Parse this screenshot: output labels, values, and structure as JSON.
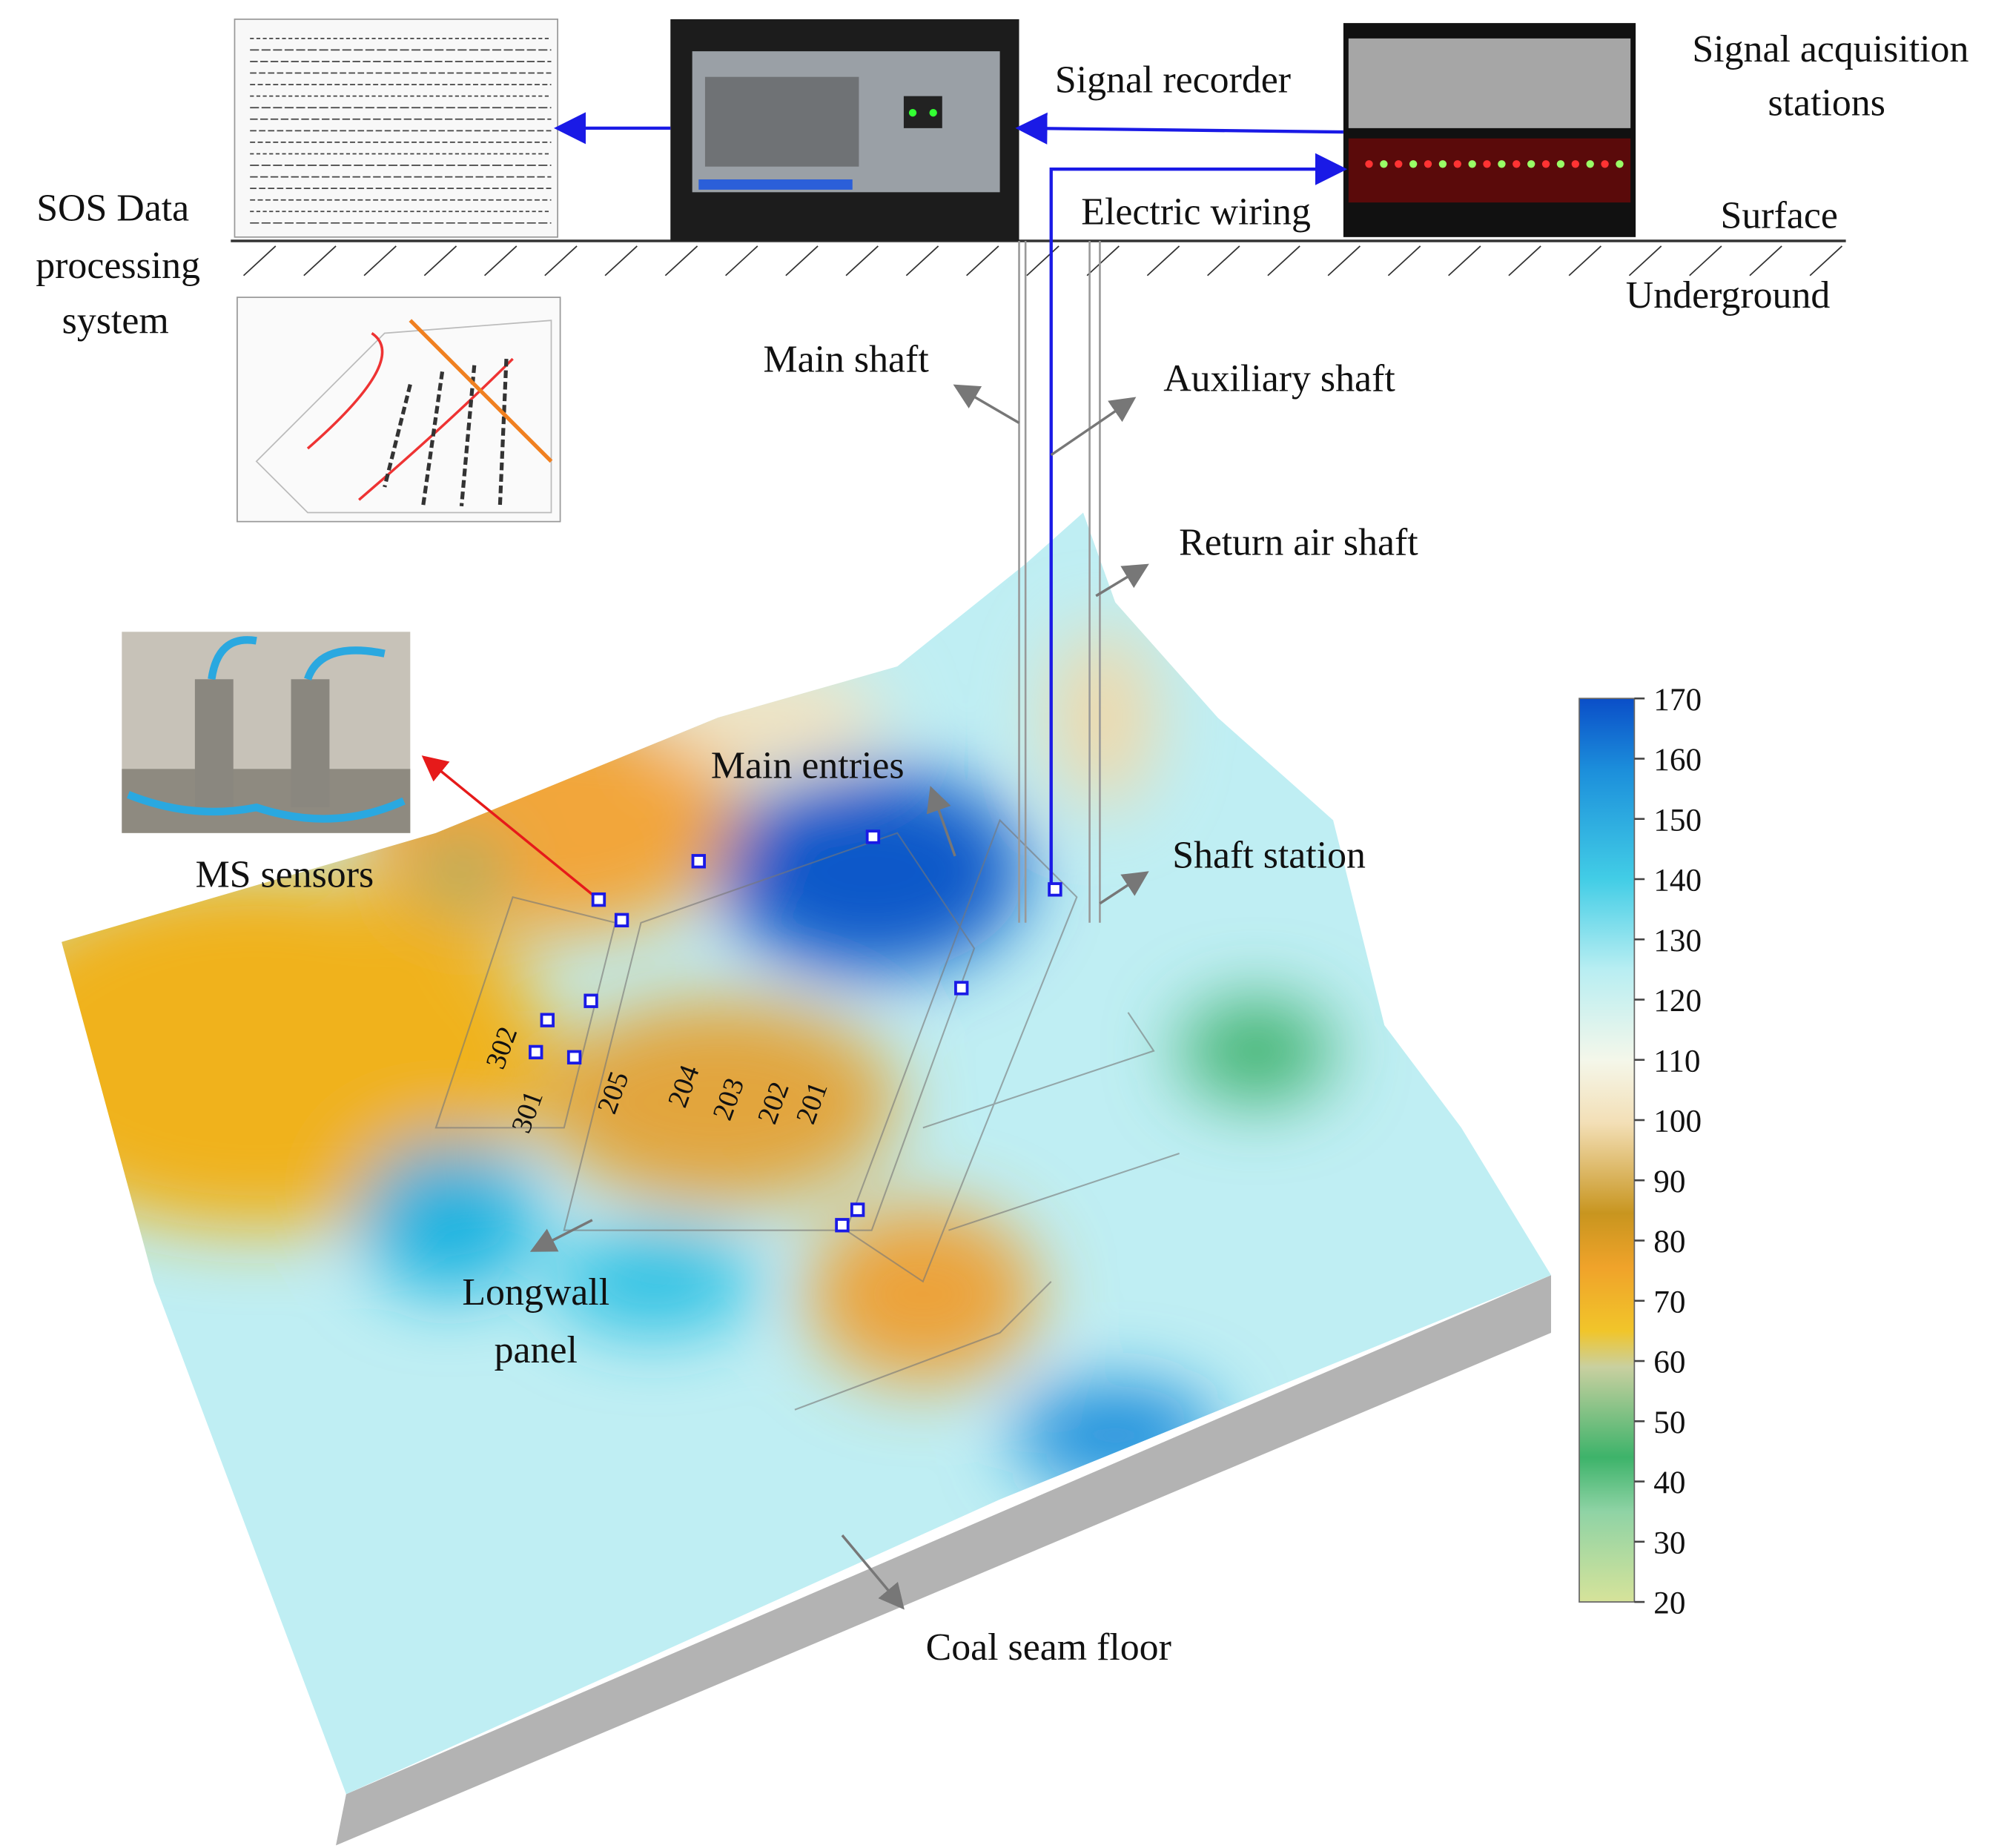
{
  "labels": {
    "signal_recorder": "Signal recorder",
    "signal_acquisition": [
      "Signal acquisition",
      "stations"
    ],
    "sos_system": [
      "SOS Data",
      "processing",
      "system"
    ],
    "electric_wiring": "Electric wiring",
    "surface": "Surface",
    "underground": "Underground",
    "main_shaft": "Main shaft",
    "auxiliary_shaft": "Auxiliary shaft",
    "return_air_shaft": "Return air shaft",
    "main_entries": "Main entries",
    "shaft_station": "Shaft station",
    "ms_sensors": "MS sensors",
    "longwall_panel": [
      "Longwall",
      "panel"
    ],
    "coal_seam_floor": "Coal seam floor"
  },
  "panels": [
    "302",
    "301",
    "205",
    "204",
    "203",
    "202",
    "201"
  ],
  "colorbar": {
    "range": [
      20,
      170
    ],
    "ticks": [
      20,
      30,
      40,
      50,
      60,
      70,
      80,
      90,
      100,
      110,
      120,
      130,
      140,
      150,
      160,
      170
    ]
  }
}
